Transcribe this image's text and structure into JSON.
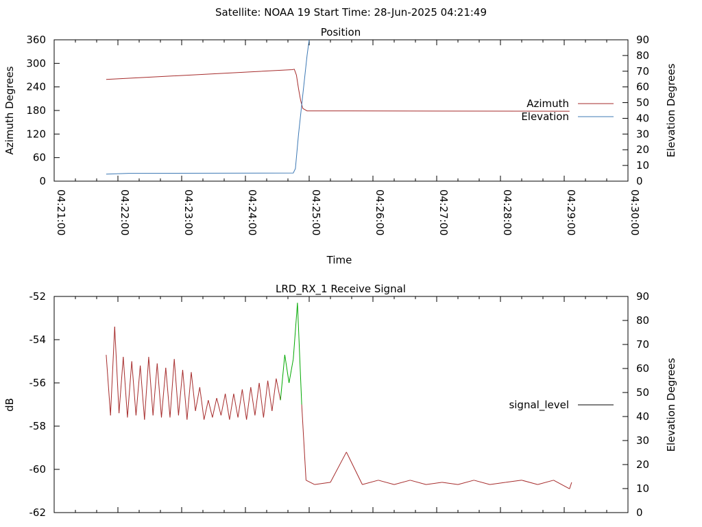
{
  "header": "Satellite: NOAA 19    Start Time: 28-Jun-2025 04:21:49",
  "colors": {
    "azimuth": "#a52a2a",
    "elevation": "#3c78b4",
    "signal_low": "#a52a2a",
    "signal_high": "#00a800",
    "frame": "#000000"
  },
  "chart_data": [
    {
      "type": "line",
      "title": "Position",
      "xlabel": "Time",
      "ylabel": "Azimuth Degrees",
      "y2label": "Elevation Degrees",
      "x_ticks": [
        "04:21:00",
        "04:22:00",
        "04:23:00",
        "04:24:00",
        "04:25:00",
        "04:26:00",
        "04:27:00",
        "04:28:00",
        "04:29:00",
        "04:30:00"
      ],
      "xlim": [
        "04:21:00",
        "04:30:00"
      ],
      "ylim": [
        0,
        360
      ],
      "y_ticks": [
        0,
        60,
        120,
        180,
        240,
        300,
        360
      ],
      "y2lim": [
        0,
        90
      ],
      "y2_ticks": [
        0,
        10,
        20,
        30,
        40,
        50,
        60,
        70,
        80,
        90
      ],
      "legend_position": "right",
      "grid": false,
      "series": [
        {
          "name": "Azimuth",
          "axis": "left",
          "x": [
            "04:21:49",
            "04:24:44",
            "04:24:46",
            "04:24:48",
            "04:24:50",
            "04:24:52",
            "04:24:54",
            "04:24:58",
            "04:29:05"
          ],
          "values": [
            259,
            284,
            285,
            270,
            235,
            205,
            185,
            179,
            178
          ]
        },
        {
          "name": "Elevation",
          "axis": "right",
          "x": [
            "04:21:49",
            "04:22:10",
            "04:24:45",
            "04:24:47",
            "04:24:50",
            "04:24:54",
            "04:24:58",
            "04:25:00"
          ],
          "values": [
            4.5,
            5,
            5.2,
            8,
            30,
            55,
            80,
            90
          ]
        }
      ]
    },
    {
      "type": "line",
      "title": "LRD_RX_1 Receive Signal",
      "ylabel": "dB",
      "y2label": "Elevation Degrees",
      "xlim": [
        "04:21:00",
        "04:30:00"
      ],
      "ylim": [
        -62,
        -52
      ],
      "y_ticks": [
        -62,
        -60,
        -58,
        -56,
        -54,
        -52
      ],
      "y2lim": [
        0,
        90
      ],
      "y2_ticks": [
        0,
        10,
        20,
        30,
        40,
        50,
        60,
        70,
        80,
        90
      ],
      "legend_position": "right",
      "grid": false,
      "series": [
        {
          "name": "signal_level",
          "x": [
            "04:21:49",
            "04:21:53",
            "04:21:57",
            "04:22:01",
            "04:22:05",
            "04:22:09",
            "04:22:13",
            "04:22:17",
            "04:22:21",
            "04:22:25",
            "04:22:29",
            "04:22:33",
            "04:22:37",
            "04:22:41",
            "04:22:45",
            "04:22:49",
            "04:22:53",
            "04:22:57",
            "04:23:01",
            "04:23:05",
            "04:23:09",
            "04:23:13",
            "04:23:17",
            "04:23:21",
            "04:23:25",
            "04:23:29",
            "04:23:33",
            "04:23:37",
            "04:23:41",
            "04:23:45",
            "04:23:49",
            "04:23:53",
            "04:23:57",
            "04:24:01",
            "04:24:05",
            "04:24:09",
            "04:24:13",
            "04:24:17",
            "04:24:21",
            "04:24:25",
            "04:24:29",
            "04:24:33",
            "04:24:37",
            "04:24:41",
            "04:24:45",
            "04:24:49",
            "04:24:53",
            "04:24:57",
            "04:25:05",
            "04:25:20",
            "04:25:35",
            "04:25:50",
            "04:26:05",
            "04:26:20",
            "04:26:35",
            "04:26:50",
            "04:27:05",
            "04:27:20",
            "04:27:35",
            "04:27:50",
            "04:28:05",
            "04:28:20",
            "04:28:35",
            "04:28:50",
            "04:29:05",
            "04:29:07"
          ],
          "values": [
            -54.7,
            -57.5,
            -53.4,
            -57.4,
            -54.8,
            -57.6,
            -55.0,
            -57.5,
            -55.2,
            -57.7,
            -54.8,
            -57.5,
            -55.1,
            -57.6,
            -55.3,
            -57.6,
            -54.9,
            -57.5,
            -55.4,
            -57.7,
            -55.5,
            -57.3,
            -56.2,
            -57.7,
            -56.8,
            -57.6,
            -56.7,
            -57.5,
            -56.5,
            -57.7,
            -56.5,
            -57.6,
            -56.3,
            -57.7,
            -56.2,
            -57.5,
            -56.0,
            -57.6,
            -55.9,
            -57.3,
            -55.8,
            -56.8,
            -54.7,
            -56.0,
            -54.9,
            -52.3,
            -57.0,
            -60.5,
            -60.7,
            -60.6,
            -59.2,
            -60.7,
            -60.5,
            -60.7,
            -60.5,
            -60.7,
            -60.6,
            -60.7,
            -60.5,
            -60.7,
            -60.6,
            -60.5,
            -60.7,
            -60.5,
            -60.9,
            -60.6
          ]
        }
      ]
    }
  ]
}
